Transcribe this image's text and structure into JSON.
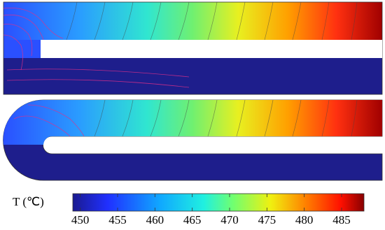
{
  "colorbar": {
    "label": "T (℃)",
    "range": [
      449,
      488
    ],
    "ticks": [
      450,
      455,
      460,
      465,
      470,
      475,
      480,
      485
    ]
  }
}
